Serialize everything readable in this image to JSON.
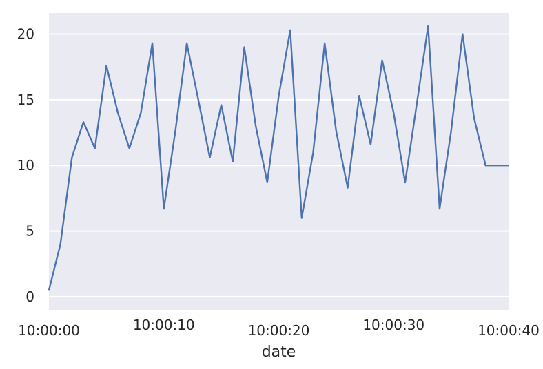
{
  "chart_data": {
    "type": "line",
    "xlabel": "date",
    "ylabel": "",
    "x": [
      "10:00:00",
      "10:00:01",
      "10:00:02",
      "10:00:03",
      "10:00:04",
      "10:00:05",
      "10:00:06",
      "10:00:07",
      "10:00:08",
      "10:00:09",
      "10:00:10",
      "10:00:11",
      "10:00:12",
      "10:00:13",
      "10:00:14",
      "10:00:15",
      "10:00:16",
      "10:00:17",
      "10:00:18",
      "10:00:19",
      "10:00:20",
      "10:00:21",
      "10:00:22",
      "10:00:23",
      "10:00:24",
      "10:00:25",
      "10:00:26",
      "10:00:27",
      "10:00:28",
      "10:00:29",
      "10:00:30",
      "10:00:31",
      "10:00:32",
      "10:00:33",
      "10:00:34",
      "10:00:35",
      "10:00:36",
      "10:00:37",
      "10:00:38",
      "10:00:39",
      "10:00:40"
    ],
    "series": [
      {
        "values": [
          0.5,
          4.0,
          10.6,
          13.3,
          11.3,
          17.6,
          14.0,
          11.3,
          14.0,
          19.3,
          6.7,
          12.6,
          19.3,
          15.0,
          10.6,
          14.6,
          10.3,
          19.0,
          13.0,
          8.7,
          15.3,
          20.3,
          6.0,
          11.0,
          19.3,
          12.6,
          8.3,
          15.3,
          11.6,
          18.0,
          14.0,
          8.7,
          14.6,
          20.6,
          6.7,
          12.6,
          20.0,
          13.6,
          10.0,
          10.0,
          10.0
        ],
        "color": "#4c72b0"
      }
    ],
    "xticks": [
      "10:00:00",
      "10:00:10",
      "10:00:20",
      "10:00:30",
      "10:00:40"
    ],
    "yticks": [
      0,
      5,
      10,
      15,
      20
    ],
    "xlim": [
      "10:00:00",
      "10:00:40"
    ],
    "ylim": [
      -1.0,
      21.6
    ],
    "grid": true,
    "style": {
      "background": "#eaeaf2",
      "grid_color": "#ffffff"
    }
  }
}
